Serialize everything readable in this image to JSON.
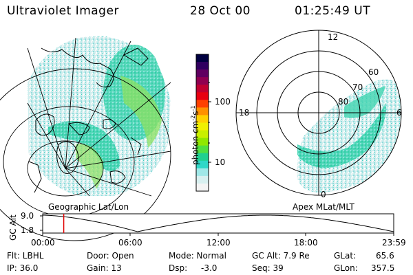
{
  "header": {
    "title": "Ultraviolet Imager",
    "date": "28 Oct 00",
    "time": "01:25:49 UT"
  },
  "colorbar": {
    "unit_prefix": "photon cm",
    "unit_exp1": "-2",
    "unit_mid": "s",
    "unit_exp2": "-1",
    "ticks": [
      "100",
      "10"
    ],
    "colors": [
      "#000040",
      "#300060",
      "#600060",
      "#900050",
      "#c00030",
      "#e80010",
      "#ff4000",
      "#ff9000",
      "#ffd000",
      "#f0f000",
      "#c8f000",
      "#90e800",
      "#50e040",
      "#20d090",
      "#30d8c8",
      "#a0e8e8",
      "#d8f0f0",
      "#f4f4f4"
    ]
  },
  "left_panel": {
    "label": "Geographic Lat/Lon"
  },
  "right_panel": {
    "label": "Apex MLat/MLT",
    "mlt_labels": [
      "12",
      "18",
      "6",
      "0"
    ],
    "lat_labels": [
      "60",
      "70",
      "80"
    ]
  },
  "timeline": {
    "axis_label": "GC Alt",
    "y_ticks": [
      "9.0",
      "1.8"
    ],
    "x_ticks": [
      "00:00",
      "06:00",
      "12:00",
      "18:00",
      "23:59"
    ],
    "marker_fraction": 0.06
  },
  "info": {
    "flt": "Flt: LBHL",
    "ip": "IP: 36.0",
    "door": "Door: Open",
    "gain": "Gain: 13",
    "mode": "Mode: Normal",
    "dsp_label": "Dsp:",
    "dsp_value": "-3.0",
    "gc_alt": "GC Alt: 7.9 Re",
    "seq": "Seq: 39",
    "glat_label": "GLat:",
    "glat_value": "65.6",
    "glon_label": "GLon:",
    "glon_value": "357.5"
  }
}
